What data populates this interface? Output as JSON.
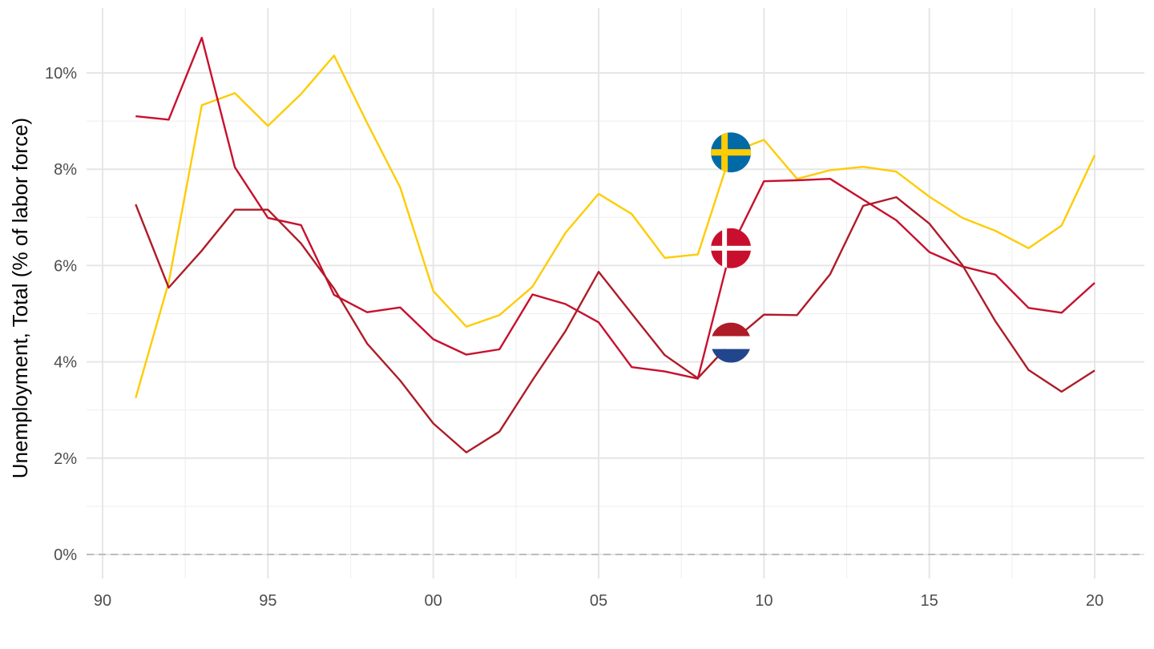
{
  "chart_data": {
    "type": "line",
    "title": "",
    "xlabel": "",
    "ylabel": "Unemployment, Total (% of labor force)",
    "xlim": [
      1990,
      2020
    ],
    "ylim": [
      0,
      10
    ],
    "grid": true,
    "x_ticks": [
      {
        "value": 1990,
        "label": "90"
      },
      {
        "value": 1995,
        "label": "95"
      },
      {
        "value": 2000,
        "label": "00"
      },
      {
        "value": 2005,
        "label": "05"
      },
      {
        "value": 2010,
        "label": "10"
      },
      {
        "value": 2015,
        "label": "15"
      },
      {
        "value": 2020,
        "label": "20"
      }
    ],
    "y_ticks": [
      {
        "value": 0,
        "label": "0%"
      },
      {
        "value": 2,
        "label": "2%"
      },
      {
        "value": 4,
        "label": "4%"
      },
      {
        "value": 6,
        "label": "6%"
      },
      {
        "value": 8,
        "label": "8%"
      },
      {
        "value": 10,
        "label": "10%"
      }
    ],
    "reference_line": {
      "y": 0,
      "style": "dashed",
      "color": "#bdbdbd"
    },
    "x": [
      1991,
      1992,
      1993,
      1994,
      1995,
      1996,
      1997,
      1998,
      1999,
      2000,
      2001,
      2002,
      2003,
      2004,
      2005,
      2006,
      2007,
      2008,
      2009,
      2010,
      2011,
      2012,
      2013,
      2014,
      2015,
      2016,
      2017,
      2018,
      2019,
      2020
    ],
    "series": [
      {
        "key": "sweden",
        "color": "#FECC02",
        "flag_icon": "sweden-flag-icon",
        "label_year": 2009,
        "values": [
          3.25,
          5.65,
          9.33,
          9.58,
          8.9,
          9.56,
          10.36,
          8.96,
          7.62,
          5.47,
          4.73,
          4.97,
          5.56,
          6.68,
          7.49,
          7.07,
          6.16,
          6.23,
          8.35,
          8.61,
          7.8,
          7.98,
          8.05,
          7.95,
          7.43,
          6.99,
          6.72,
          6.36,
          6.83,
          8.29
        ]
      },
      {
        "key": "denmark",
        "color": "#C8102E",
        "flag_icon": "denmark-flag-icon",
        "label_year": 2009,
        "values": [
          9.1,
          9.03,
          10.73,
          8.04,
          6.99,
          6.84,
          5.39,
          5.03,
          5.13,
          4.47,
          4.15,
          4.26,
          5.4,
          5.2,
          4.82,
          3.89,
          3.8,
          3.65,
          6.36,
          7.75,
          7.77,
          7.8,
          7.37,
          6.94,
          6.28,
          5.98,
          5.81,
          5.12,
          5.02,
          5.64
        ]
      },
      {
        "key": "netherlands",
        "color": "#AE1C28",
        "flag_icon": "netherlands-flag-icon",
        "label_year": 2009,
        "values": [
          7.27,
          5.54,
          6.31,
          7.16,
          7.16,
          6.46,
          5.52,
          4.38,
          3.61,
          2.72,
          2.12,
          2.55,
          3.62,
          4.64,
          5.87,
          5.0,
          4.14,
          3.66,
          4.4,
          4.98,
          4.97,
          5.82,
          7.24,
          7.42,
          6.87,
          6.01,
          4.84,
          3.83,
          3.38,
          3.82
        ]
      }
    ]
  }
}
